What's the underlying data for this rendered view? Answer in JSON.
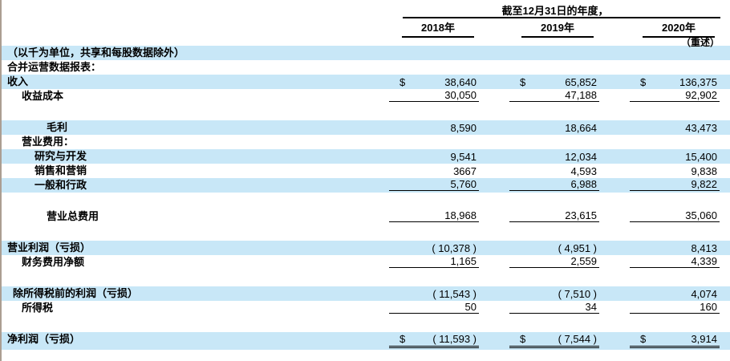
{
  "page": {
    "units_note": "（以千为单位，共享和每股数据除外）",
    "section_title": "合并运营数据报表："
  },
  "header": {
    "period_title": "截至12月31日的年度，",
    "years": [
      "2018年",
      "2019年",
      "2020年"
    ],
    "restated_note": "（重述）"
  },
  "table": {
    "currency_symbol": "$",
    "rows": [
      {
        "type": "item",
        "label": "收入",
        "indent": 0,
        "highlight": true,
        "dollar": true,
        "values": [
          "38,640",
          "65,852",
          "136,375"
        ]
      },
      {
        "type": "item",
        "label": "收益成本",
        "indent": 2,
        "highlight": false,
        "underline": "single",
        "values": [
          "30,050",
          "47,188",
          "92,902"
        ]
      },
      {
        "type": "spacer"
      },
      {
        "type": "item",
        "label": "毛利",
        "indent": 4,
        "highlight": true,
        "values": [
          "8,590",
          "18,664",
          "43,473"
        ]
      },
      {
        "type": "item",
        "label": "营业费用：",
        "indent": 2,
        "highlight": false,
        "values": [
          "",
          "",
          ""
        ]
      },
      {
        "type": "item",
        "label": "研究与开发",
        "indent": 3,
        "highlight": true,
        "values": [
          "9,541",
          "12,034",
          "15,400"
        ]
      },
      {
        "type": "item",
        "label": "销售和营销",
        "indent": 3,
        "highlight": false,
        "values": [
          "3667",
          "4,593",
          "9,838"
        ]
      },
      {
        "type": "item",
        "label": "一般和行政",
        "indent": 3,
        "highlight": true,
        "underline": "single",
        "values": [
          "5,760",
          "6,988",
          "9,822"
        ]
      },
      {
        "type": "spacer"
      },
      {
        "type": "item",
        "label": "营业总费用",
        "indent": 4,
        "highlight": false,
        "underline": "single",
        "values": [
          "18,968",
          "23,615",
          "35,060"
        ]
      },
      {
        "type": "spacer"
      },
      {
        "type": "item",
        "label": "营业利润（亏损）",
        "indent": 0,
        "highlight": true,
        "values": [
          "( 10,378 )",
          "( 4,951 )",
          "8,413"
        ]
      },
      {
        "type": "item",
        "label": "财务费用净额",
        "indent": 2,
        "highlight": false,
        "underline": "single",
        "values": [
          "1,165",
          "2,559",
          "4,339"
        ]
      },
      {
        "type": "spacer"
      },
      {
        "type": "item",
        "label": "除所得税前的利润（亏损）",
        "indent": 1,
        "highlight": true,
        "values": [
          "( 11,543 )",
          "( 7,510 )",
          "4,074"
        ]
      },
      {
        "type": "item",
        "label": "所得税",
        "indent": 2,
        "highlight": false,
        "underline": "single",
        "values": [
          "50",
          "34",
          "160"
        ]
      },
      {
        "type": "spacer"
      },
      {
        "type": "item",
        "label": "净利润（亏损）",
        "indent": 0,
        "highlight": true,
        "dollar": true,
        "underline": "double",
        "tall": true,
        "values": [
          "( 11,593 )",
          "( 7,544 )",
          "3,914"
        ]
      }
    ]
  },
  "colors": {
    "highlight_row": "#c8e7f7",
    "page_left_border": "#ab9e92",
    "text": "#000000"
  }
}
